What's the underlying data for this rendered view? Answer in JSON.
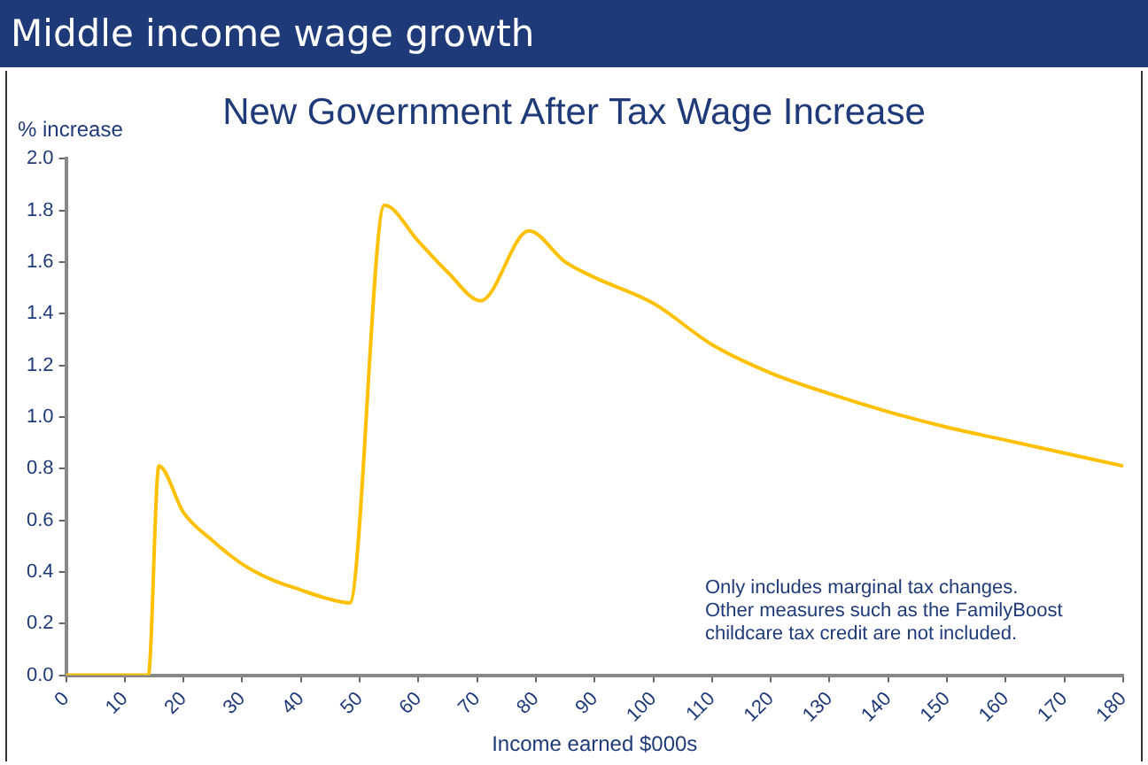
{
  "chart_data": {
    "type": "line",
    "title": "Middle income wage growth",
    "subtitle": "New Government After Tax Wage Increase",
    "xlabel": "Income earned $000s",
    "ylabel": "% increase",
    "annotations": [
      "Only includes marginal tax changes.\nOther measures such as the FamilyBoost\nchildcare tax credit are not included."
    ],
    "x": [
      0,
      14,
      15.8,
      20,
      25,
      30,
      35,
      40,
      44,
      48.3,
      54.2,
      60,
      65,
      70.6,
      78.8,
      85,
      90,
      100,
      110,
      120,
      130,
      140,
      150,
      160,
      170,
      180
    ],
    "series": [
      {
        "color": "#ffc000",
        "values": [
          0,
          0,
          0.81,
          0.63,
          0.52,
          0.43,
          0.37,
          0.33,
          0.3,
          0.28,
          1.82,
          1.68,
          1.56,
          1.45,
          1.72,
          1.6,
          1.54,
          1.44,
          1.28,
          1.17,
          1.09,
          1.02,
          0.96,
          0.91,
          0.86,
          0.81
        ]
      }
    ],
    "xlim": [
      0,
      180
    ],
    "xticks": [
      0,
      10,
      20,
      30,
      40,
      50,
      60,
      70,
      80,
      90,
      100,
      110,
      120,
      130,
      140,
      150,
      160,
      170,
      180
    ],
    "ylim": [
      0,
      2
    ],
    "yticks": [
      {
        "value": 0,
        "label": "0.0"
      },
      {
        "value": 0.2,
        "label": "0.2"
      },
      {
        "value": 0.4,
        "label": "0.4"
      },
      {
        "value": 0.6,
        "label": "0.6"
      },
      {
        "value": 0.8,
        "label": "0.8"
      },
      {
        "value": 1,
        "label": "1.0"
      },
      {
        "value": 1.2,
        "label": "1.2"
      },
      {
        "value": 1.4,
        "label": "1.4"
      },
      {
        "value": 1.6,
        "label": "1.6"
      },
      {
        "value": 1.8,
        "label": "1.8"
      },
      {
        "value": 2,
        "label": "2.0"
      }
    ],
    "grid": false,
    "legend": false,
    "marker": "none",
    "line_style": "solid"
  }
}
